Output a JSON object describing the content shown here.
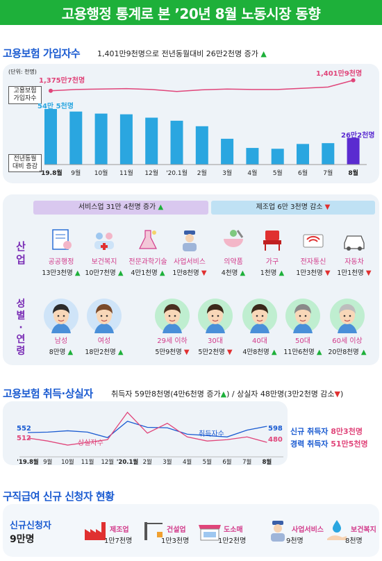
{
  "title": "고용행정 통계로 본 ’20년 8월 노동시장 동향",
  "insured": {
    "title": "고용보험 가입자수",
    "subtitle": "1,401만9천명으로 전년동월대비 26만2천명 증가",
    "unit": "(단위: 천명)",
    "legend_total": "고용보험 가입자수",
    "legend_change": "전년동월 대비 증감",
    "first_total_label": "1,375만7천명",
    "last_total_label": "1,401만9천명",
    "first_bar_label": "54만 5천명",
    "last_bar_label": "26만2천명"
  },
  "industry": {
    "service_header": "서비스업 31만 4천명 증가",
    "mfg_header": "제조업 6만 3천명 감소",
    "row_label": "산업",
    "items": [
      {
        "name": "공공행정",
        "value": "13만3천명",
        "dir": "up",
        "icon": "document-person-icon"
      },
      {
        "name": "보건복지",
        "value": "10만7천명",
        "dir": "up",
        "icon": "people-cross-icon"
      },
      {
        "name": "전문과학기술",
        "value": "4만1천명",
        "dir": "up",
        "icon": "flask-icon"
      },
      {
        "name": "사업서비스",
        "value": "1만8천명",
        "dir": "down",
        "icon": "security-guard-icon"
      },
      {
        "name": "의약품",
        "value": "4천명",
        "dir": "up",
        "icon": "mortar-pill-icon"
      },
      {
        "name": "가구",
        "value": "1천명",
        "dir": "up",
        "icon": "chair-icon"
      },
      {
        "name": "전자통신",
        "value": "1만3천명",
        "dir": "down",
        "icon": "router-icon"
      },
      {
        "name": "자동차",
        "value": "1만1천명",
        "dir": "down",
        "icon": "car-icon"
      }
    ]
  },
  "demographic": {
    "row_label": "성별·연령",
    "items": [
      {
        "name": "남성",
        "value": "8만명",
        "dir": "up",
        "icon": "man-face-icon"
      },
      {
        "name": "여성",
        "value": "18만2천명",
        "dir": "up",
        "icon": "woman-face-icon"
      },
      {
        "name": "29세 이하",
        "value": "5만9천명",
        "dir": "down",
        "icon": "young-face-icon"
      },
      {
        "name": "30대",
        "value": "5만2천명",
        "dir": "down",
        "icon": "thirties-face-icon"
      },
      {
        "name": "40대",
        "value": "4만8천명",
        "dir": "up",
        "icon": "forties-face-icon"
      },
      {
        "name": "50대",
        "value": "11만6천명",
        "dir": "up",
        "icon": "fifties-face-icon"
      },
      {
        "name": "60세 이상",
        "value": "20만8천명",
        "dir": "up",
        "icon": "senior-face-icon"
      }
    ]
  },
  "flows": {
    "title": "고용보험 취득·상실자",
    "subtitle_a": "취득자 59만8천명(4만6천명 증가",
    "subtitle_b": ") / 상실자 48만명(3만2천명 감소",
    "subtitle_c": ")",
    "left_acq": "552",
    "left_loss": "512",
    "right_acq": "598",
    "right_loss": "480",
    "series_acq_label": "취득자수",
    "series_loss_label": "상실자수",
    "new_acq": "신규 취득자",
    "new_acq_val": "8만3천명",
    "exp_acq": "경력 취득자",
    "exp_acq_val": "51만5천명"
  },
  "benefit": {
    "title": "구직급여 신규 신청자 현황",
    "total_label": "신규신청자",
    "total_value": "9만명",
    "items": [
      {
        "name": "제조업",
        "value": "1만7천명",
        "icon": "factory-icon"
      },
      {
        "name": "건설업",
        "value": "1만3천명",
        "icon": "crane-icon"
      },
      {
        "name": "도소매",
        "value": "1만2천명",
        "icon": "shop-icon"
      },
      {
        "name": "사업서비스",
        "value": "9천명",
        "icon": "security-guard-icon"
      },
      {
        "name": "보건복지",
        "value": "8천명",
        "icon": "hand-drop-icon"
      }
    ]
  },
  "chart_data": [
    {
      "type": "bar",
      "categories": [
        "'19.8월",
        "9월",
        "10월",
        "11월",
        "12월",
        "'20.1월",
        "2월",
        "3월",
        "4월",
        "5월",
        "6월",
        "7월",
        "8월"
      ],
      "series": [
        {
          "name": "고용보험 가입자수",
          "type": "line",
          "values": [
            13757,
            13790,
            13800,
            13810,
            13790,
            13740,
            13780,
            13800,
            13790,
            13790,
            13820,
            13850,
            14019
          ]
        },
        {
          "name": "전년동월 대비 증감",
          "type": "bar",
          "values": [
            545,
            520,
            500,
            493,
            460,
            430,
            376,
            253,
            163,
            155,
            202,
            210,
            262
          ]
        }
      ]
    },
    {
      "type": "line",
      "categories": [
        "'19.8월",
        "9월",
        "10월",
        "11월",
        "12월",
        "'20.1월",
        "2월",
        "3월",
        "4월",
        "5월",
        "6월",
        "7월",
        "8월"
      ],
      "series": [
        {
          "name": "취득자수",
          "values": [
            552,
            555,
            565,
            555,
            515,
            635,
            590,
            587,
            540,
            530,
            520,
            570,
            598
          ]
        },
        {
          "name": "상실자수",
          "values": [
            512,
            490,
            460,
            480,
            500,
            700,
            548,
            620,
            520,
            490,
            500,
            520,
            480
          ]
        }
      ]
    }
  ],
  "colors": {
    "green": "#1eb03a",
    "blue": "#1a5bd1",
    "bar": "#2aa6e0",
    "bar_last": "#5a2bd0",
    "pink": "#e0457a"
  }
}
